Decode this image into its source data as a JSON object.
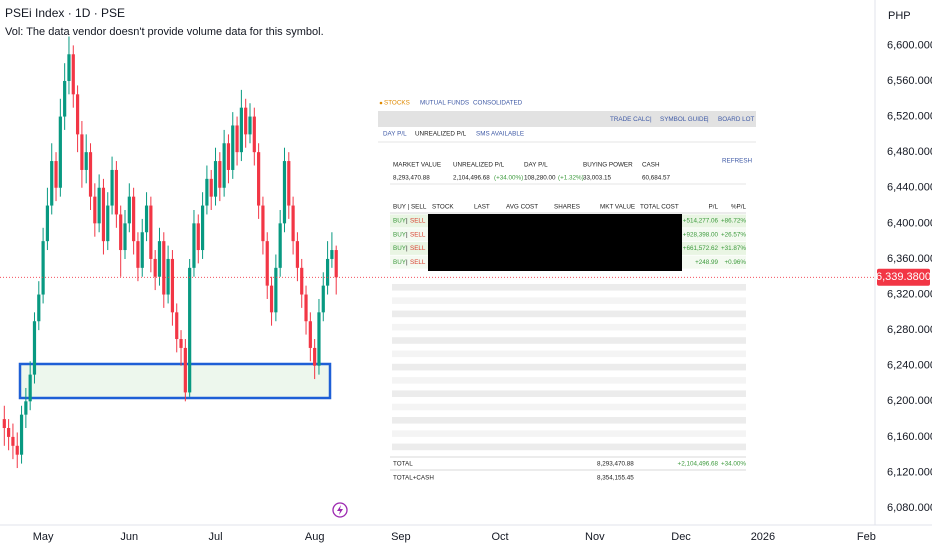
{
  "header": {
    "title": "PSEi Index · 1D · PSE",
    "volume_note": "Vol: The data vendor doesn't provide volume data for this symbol.",
    "currency": "PHP"
  },
  "chart_data": {
    "type": "candlestick",
    "up_color": "#089981",
    "down_color": "#f23645",
    "grid": false,
    "x": [
      -9,
      -8,
      -7,
      -6,
      -5,
      -4,
      -3,
      -2,
      -1,
      0,
      1,
      2,
      3,
      4,
      5,
      6,
      7,
      8,
      9,
      10,
      11,
      12,
      13,
      14,
      15,
      16,
      17,
      18,
      19,
      20,
      21,
      22,
      23,
      24,
      25,
      26,
      27,
      28,
      29,
      30,
      31,
      32,
      33,
      34,
      35,
      36,
      37,
      38,
      39,
      40,
      41,
      42,
      43,
      44,
      45,
      46,
      47,
      48,
      49,
      50,
      51,
      52,
      53,
      54,
      55,
      56,
      57,
      58,
      59,
      60,
      61,
      62,
      63,
      64,
      65,
      66,
      67,
      68
    ],
    "open": [
      6180,
      6170,
      6160,
      6150,
      6140,
      6185,
      6200,
      6230,
      6290,
      6320,
      6380,
      6420,
      6470,
      6440,
      6520,
      6560,
      6590,
      6545,
      6500,
      6460,
      6480,
      6430,
      6400,
      6440,
      6380,
      6420,
      6460,
      6410,
      6370,
      6400,
      6430,
      6380,
      6350,
      6390,
      6420,
      6360,
      6340,
      6380,
      6320,
      6360,
      6300,
      6270,
      6260,
      6210,
      6350,
      6400,
      6370,
      6420,
      6450,
      6430,
      6470,
      6440,
      6490,
      6460,
      6510,
      6480,
      6530,
      6500,
      6520,
      6480,
      6420,
      6380,
      6330,
      6300,
      6350,
      6400,
      6470,
      6420,
      6380,
      6350,
      6320,
      6290,
      6260,
      6240,
      6300,
      6330,
      6360,
      6370
    ],
    "high": [
      6195,
      6180,
      6175,
      6165,
      6195,
      6215,
      6245,
      6300,
      6335,
      6395,
      6440,
      6490,
      6480,
      6540,
      6580,
      6610,
      6600,
      6555,
      6515,
      6500,
      6490,
      6445,
      6455,
      6450,
      6435,
      6475,
      6470,
      6420,
      6415,
      6445,
      6440,
      6390,
      6405,
      6435,
      6430,
      6370,
      6395,
      6390,
      6375,
      6370,
      6310,
      6280,
      6270,
      6360,
      6415,
      6410,
      6435,
      6465,
      6460,
      6485,
      6480,
      6505,
      6500,
      6525,
      6520,
      6550,
      6540,
      6535,
      6530,
      6490,
      6430,
      6390,
      6340,
      6365,
      6415,
      6485,
      6480,
      6430,
      6390,
      6360,
      6330,
      6300,
      6270,
      6315,
      6345,
      6380,
      6390,
      6375
    ],
    "low": [
      6150,
      6145,
      6135,
      6125,
      6130,
      6170,
      6190,
      6220,
      6280,
      6310,
      6370,
      6410,
      6425,
      6430,
      6505,
      6545,
      6530,
      6480,
      6440,
      6445,
      6415,
      6385,
      6390,
      6365,
      6370,
      6410,
      6395,
      6340,
      6360,
      6390,
      6365,
      6335,
      6340,
      6380,
      6345,
      6325,
      6330,
      6305,
      6310,
      6285,
      6255,
      6240,
      6200,
      6205,
      6340,
      6355,
      6360,
      6410,
      6415,
      6420,
      6425,
      6430,
      6445,
      6450,
      6465,
      6470,
      6485,
      6490,
      6465,
      6405,
      6365,
      6315,
      6285,
      6290,
      6340,
      6390,
      6405,
      6365,
      6335,
      6305,
      6275,
      6245,
      6225,
      6230,
      6290,
      6320,
      6350,
      6320
    ],
    "close": [
      6170,
      6160,
      6150,
      6140,
      6185,
      6200,
      6230,
      6290,
      6320,
      6380,
      6420,
      6470,
      6440,
      6520,
      6560,
      6590,
      6545,
      6500,
      6460,
      6480,
      6430,
      6400,
      6440,
      6380,
      6420,
      6460,
      6410,
      6370,
      6400,
      6430,
      6380,
      6350,
      6390,
      6420,
      6360,
      6340,
      6380,
      6320,
      6360,
      6300,
      6270,
      6260,
      6210,
      6350,
      6400,
      6370,
      6420,
      6450,
      6430,
      6470,
      6440,
      6490,
      6460,
      6510,
      6480,
      6530,
      6500,
      6520,
      6480,
      6420,
      6380,
      6330,
      6300,
      6350,
      6400,
      6470,
      6420,
      6380,
      6350,
      6320,
      6290,
      6260,
      6240,
      6300,
      6330,
      6360,
      6370,
      6339.38
    ],
    "last_price": {
      "value": 6339.38,
      "label": "6,339.3800"
    },
    "xlim": [
      -10,
      193
    ],
    "xticks": [
      {
        "value": 0,
        "label": "May"
      },
      {
        "value": 20,
        "label": "Jun"
      },
      {
        "value": 40,
        "label": "Jul"
      },
      {
        "value": 63,
        "label": "Aug"
      },
      {
        "value": 83,
        "label": "Sep"
      },
      {
        "value": 106,
        "label": "Oct"
      },
      {
        "value": 128,
        "label": "Nov"
      },
      {
        "value": 148,
        "label": "Dec"
      },
      {
        "value": 167,
        "label": "2026"
      },
      {
        "value": 191,
        "label": "Feb"
      }
    ],
    "ylim": [
      6061,
      6651
    ],
    "yticks": [
      {
        "value": 6080,
        "label": "6,080.0000"
      },
      {
        "value": 6120,
        "label": "6,120.0000"
      },
      {
        "value": 6160,
        "label": "6,160.0000"
      },
      {
        "value": 6200,
        "label": "6,200.0000"
      },
      {
        "value": 6240,
        "label": "6,240.0000"
      },
      {
        "value": 6280,
        "label": "6,280.0000"
      },
      {
        "value": 6320,
        "label": "6,320.0000"
      },
      {
        "value": 6360,
        "label": "6,360.0000"
      },
      {
        "value": 6400,
        "label": "6,400.0000"
      },
      {
        "value": 6440,
        "label": "6,440.0000"
      },
      {
        "value": 6480,
        "label": "6,480.0000"
      },
      {
        "value": 6520,
        "label": "6,520.0000"
      },
      {
        "value": 6560,
        "label": "6,560.0000"
      },
      {
        "value": 6600,
        "label": "6,600.0000"
      }
    ]
  },
  "portfolio": {
    "tabs": [
      "STOCKS",
      "MUTUAL FUNDS",
      "CONSOLIDATED"
    ],
    "links": [
      "TRADE CALC",
      "|",
      "SYMBOL GUIDE",
      "|",
      "BOARD LOT"
    ],
    "subtabs": [
      "DAY P/L",
      "UNREALIZED P/L",
      "SMS AVAILABLE"
    ],
    "summary_headers": [
      "MARKET VALUE",
      "UNREALIZED P/L",
      "DAY P/L",
      "BUYING POWER",
      "CASH"
    ],
    "refresh": "REFRESH",
    "summary": {
      "market_value": "8,293,470.88",
      "unrealized": "2,104,496.68",
      "unrealized_pct": "(+34.00%)",
      "day_pl": "108,280.00",
      "day_pl_pct": "(+1.32%)",
      "buying_power": "33,003.15",
      "cash": "60,684.57"
    },
    "table_headers": [
      "BUY | SELL",
      "STOCK",
      "LAST",
      "AVG COST",
      "SHARES",
      "MKT VALUE",
      "TOTAL COST",
      "P/L",
      "%P/L"
    ],
    "rows": [
      {
        "buy": "BUY",
        "sep": "|",
        "sell": "SELL",
        "pl": "+514,277.06",
        "pl_pct": "+86.72%"
      },
      {
        "buy": "BUY",
        "sep": "|",
        "sell": "SELL",
        "pl": "+928,398.00",
        "pl_pct": "+26.57%"
      },
      {
        "buy": "BUY",
        "sep": "|",
        "sell": "SELL",
        "pl": "+661,572.62",
        "pl_pct": "+31.87%"
      },
      {
        "buy": "BUY",
        "sep": "|",
        "sell": "SELL",
        "pl": "+248.99",
        "pl_pct": "+0.96%"
      }
    ],
    "total": {
      "label": "TOTAL",
      "mkt_value": "8,293,470.88",
      "pl": "+2,104,496.68",
      "pl_pct": "+34.00%"
    },
    "total_cash": {
      "label": "TOTAL+CASH",
      "mkt_value": "8,354,155.45"
    }
  }
}
